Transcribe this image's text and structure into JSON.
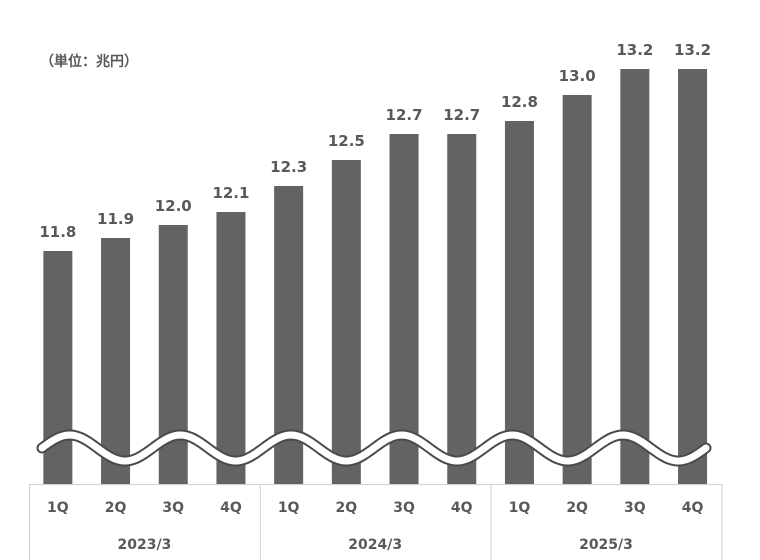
{
  "unit_label": "（単位：兆円）",
  "chart_data": {
    "type": "bar",
    "title": "",
    "xlabel": "",
    "ylabel": "",
    "unit": "兆円",
    "categories": [
      "1Q",
      "2Q",
      "3Q",
      "4Q",
      "1Q",
      "2Q",
      "3Q",
      "4Q",
      "1Q",
      "2Q",
      "3Q",
      "4Q"
    ],
    "groups": [
      {
        "label": "2023/3",
        "span": 4
      },
      {
        "label": "2024/3",
        "span": 4
      },
      {
        "label": "2025/3",
        "span": 4
      }
    ],
    "values": [
      11.8,
      11.9,
      12.0,
      12.1,
      12.3,
      12.5,
      12.7,
      12.7,
      12.8,
      13.0,
      13.2,
      13.2
    ],
    "value_labels": [
      "11.8",
      "11.9",
      "12.0",
      "12.1",
      "12.3",
      "12.5",
      "12.7",
      "12.7",
      "12.8",
      "13.0",
      "13.2",
      "13.2"
    ],
    "axis_break": true,
    "grid": false,
    "legend": "none",
    "bar_color": "#636363",
    "text_color": "#595959"
  }
}
